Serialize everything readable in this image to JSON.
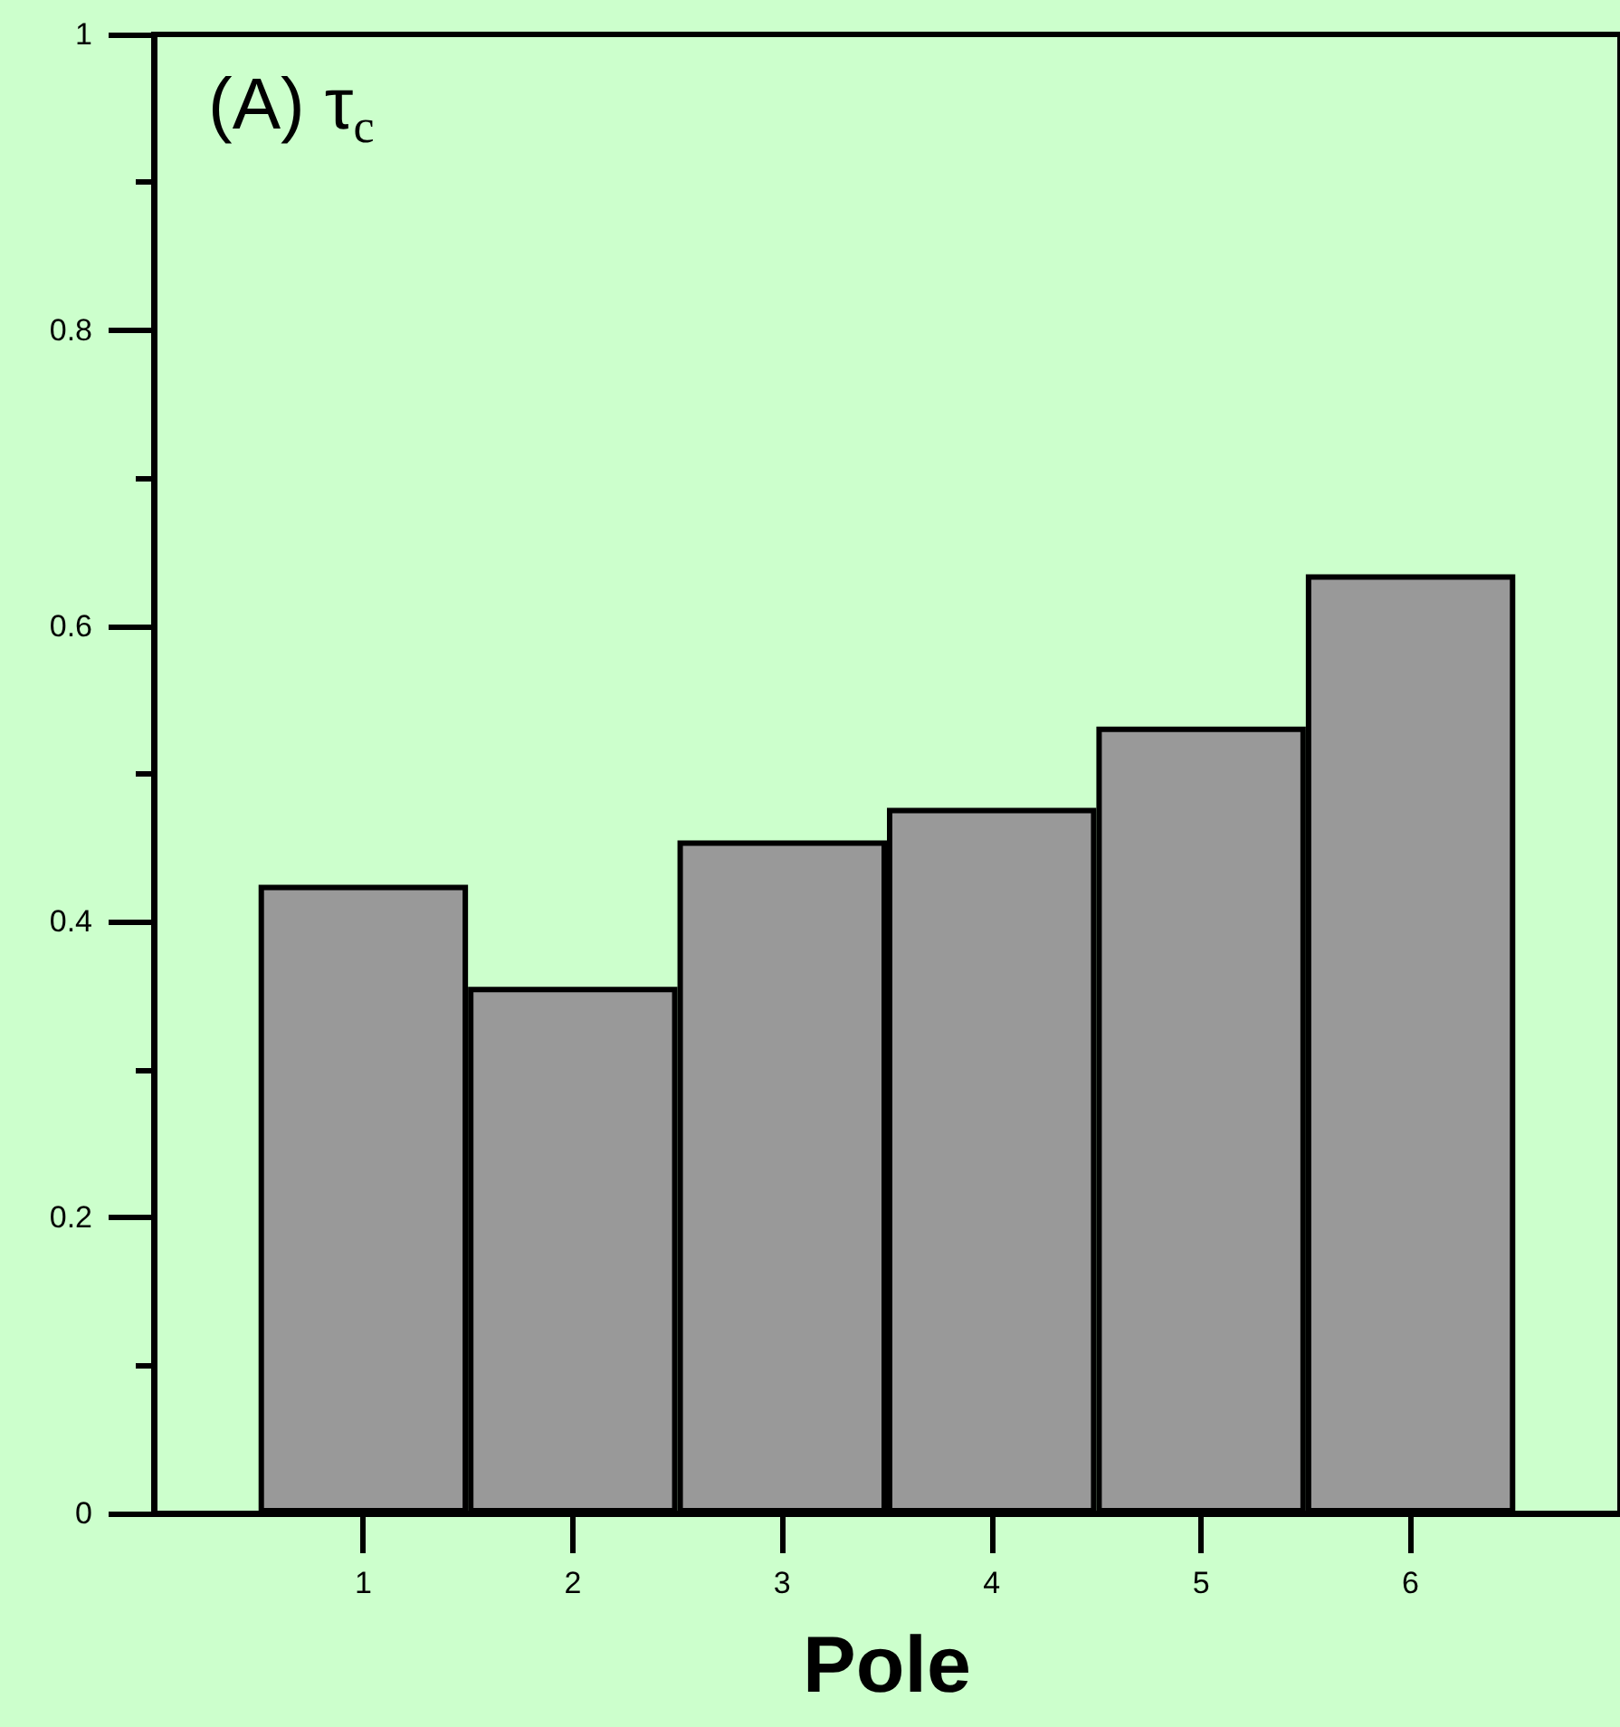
{
  "chart_data": {
    "type": "bar",
    "title": "(A) τ$_{c}$",
    "xlabel": "Pole",
    "x": [
      1,
      2,
      3,
      4,
      5,
      6
    ],
    "values": [
      0.425,
      0.356,
      0.455,
      0.477,
      0.532,
      0.635
    ],
    "color": "#999999",
    "xlim": [
      0,
      7
    ],
    "xticks": [
      1,
      2,
      3,
      4,
      5,
      6
    ],
    "ylim": [
      0,
      1
    ],
    "yticks": [
      0,
      {
        "value": 0.1,
        "label": null
      },
      0.2,
      {
        "value": 0.3,
        "label": null
      },
      0.4,
      {
        "value": 0.5,
        "label": null
      },
      0.6,
      {
        "value": 0.7,
        "label": null
      },
      0.8,
      {
        "value": 0.9,
        "label": null
      },
      1
    ],
    "grid": false
  }
}
